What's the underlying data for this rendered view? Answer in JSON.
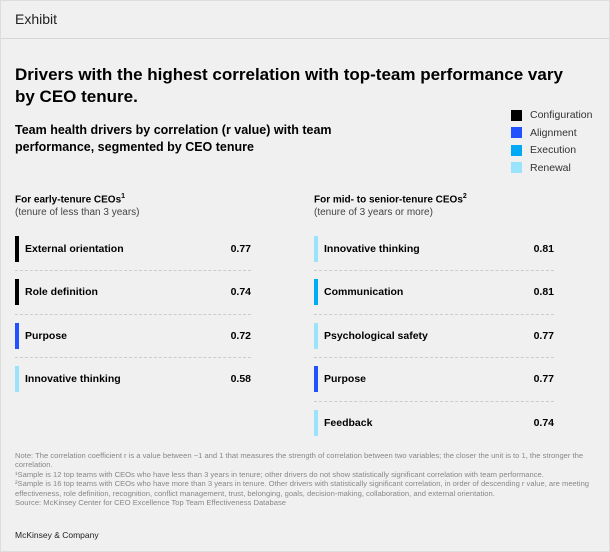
{
  "header": {
    "label": "Exhibit"
  },
  "chart_data": {
    "type": "table",
    "title": "Drivers with the highest correlation with top-team performance vary by CEO tenure.",
    "subtitle": "Team health drivers by correlation (r value) with team performance, segmented by CEO tenure",
    "legend": [
      {
        "name": "Configuration",
        "color": "#000000"
      },
      {
        "name": "Alignment",
        "color": "#2251ff"
      },
      {
        "name": "Execution",
        "color": "#00a9f4"
      },
      {
        "name": "Renewal",
        "color": "#99e3fd"
      }
    ],
    "panels": [
      {
        "heading": "For early-tenure CEOs",
        "sup": "1",
        "subheading": "(tenure of less than 3 years)",
        "rows": [
          {
            "label": "External orientation",
            "value": "0.77",
            "category": "Configuration",
            "color": "#000000"
          },
          {
            "label": "Role definition",
            "value": "0.74",
            "category": "Configuration",
            "color": "#000000"
          },
          {
            "label": "Purpose",
            "value": "0.72",
            "category": "Alignment",
            "color": "#2251ff"
          },
          {
            "label": "Innovative thinking",
            "value": "0.58",
            "category": "Renewal",
            "color": "#99e3fd"
          }
        ]
      },
      {
        "heading": "For mid- to senior-tenure CEOs",
        "sup": "2",
        "subheading": "(tenure of 3 years or more)",
        "rows": [
          {
            "label": "Innovative thinking",
            "value": "0.81",
            "category": "Renewal",
            "color": "#99e3fd"
          },
          {
            "label": "Communication",
            "value": "0.81",
            "category": "Execution",
            "color": "#00a9f4"
          },
          {
            "label": "Psychological safety",
            "value": "0.77",
            "category": "Renewal",
            "color": "#99e3fd"
          },
          {
            "label": "Purpose",
            "value": "0.77",
            "category": "Alignment",
            "color": "#2251ff"
          },
          {
            "label": "Feedback",
            "value": "0.74",
            "category": "Renewal",
            "color": "#99e3fd"
          }
        ]
      }
    ]
  },
  "notes": [
    "Note: The correlation coefficient r is a value between −1 and 1 that measures the strength of correlation between two variables; the closer the unit is to 1, the stronger the correlation.",
    "¹Sample is 12 top teams with CEOs who have less than 3 years in tenure; other drivers do not show statistically significant correlation with team performance.",
    "²Sample is 16 top teams with CEOs who have more than 3 years in tenure. Other drivers with statistically significant correlation, in order of descending r value, are meeting effectiveness, role definition, recognition, conflict management, trust, belonging, goals, decision-making, collaboration, and external orientation.",
    "Source: McKinsey Center for CEO Excellence Top Team Effectiveness Database"
  ],
  "footer": {
    "brand": "McKinsey & Company"
  }
}
